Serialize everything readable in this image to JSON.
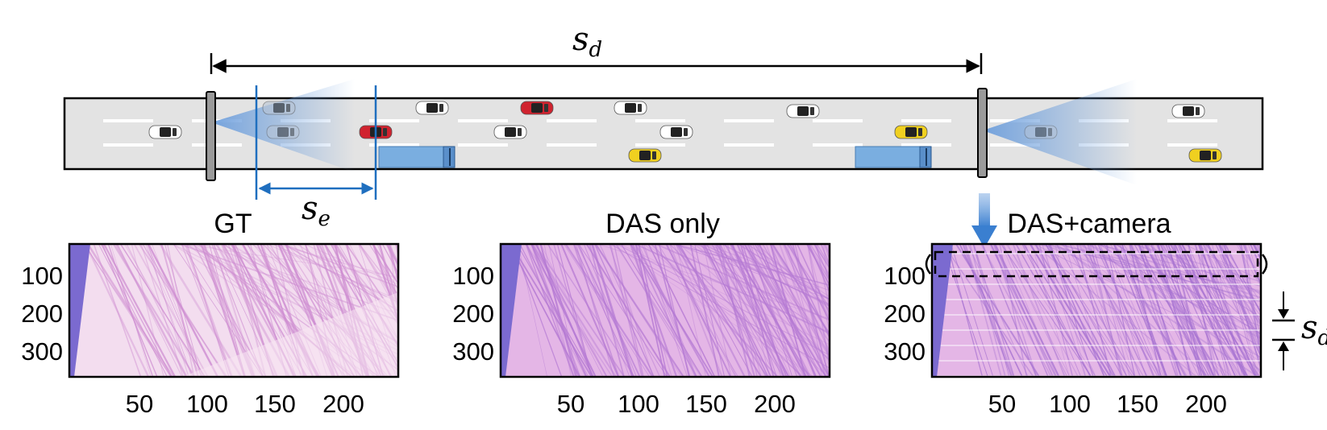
{
  "top": {
    "span_symbol": "s",
    "span_subscript": "d",
    "extent_symbol": "s",
    "extent_subscript": "e"
  },
  "panels": [
    {
      "title": "GT",
      "style": "gt",
      "y_ticks": [
        "100",
        "200",
        "300"
      ],
      "x_ticks": [
        "50",
        "100",
        "150",
        "200"
      ],
      "colors": {
        "background": "#f3ddef",
        "stripe": "#cf8fd2",
        "wedge": "#7b6ad0"
      }
    },
    {
      "title": "DAS only",
      "style": "das",
      "y_ticks": [
        "100",
        "200",
        "300"
      ],
      "x_ticks": [
        "50",
        "100",
        "150",
        "200"
      ],
      "colors": {
        "background": "#e4b6e6",
        "stripe": "#b67bd4",
        "wedge": "#7b6ad0"
      }
    },
    {
      "title": "DAS+camera",
      "style": "cam",
      "y_ticks": [
        "100",
        "200",
        "300"
      ],
      "x_ticks": [
        "50",
        "100",
        "150",
        "200"
      ],
      "colors": {
        "background": "#e4b6e6",
        "stripe": "#a874d2",
        "wedge": "#7b6ad0"
      },
      "spacing_symbol": "s",
      "spacing_subscript": "d"
    }
  ],
  "colors": {
    "road": "#e3e3e3",
    "lane_mark": "#ffffff",
    "camera_beam": "#7aa8e0",
    "extent_line": "#1f6fbf",
    "truck": "#7aaee0",
    "car_red": "#d0232f",
    "car_yellow": "#f0d020",
    "car_white": "#ffffff",
    "car_gray": "#b8c4d4"
  },
  "icons": {
    "camera": "camera-pole-icon",
    "car": "car-icon",
    "truck": "truck-icon"
  }
}
